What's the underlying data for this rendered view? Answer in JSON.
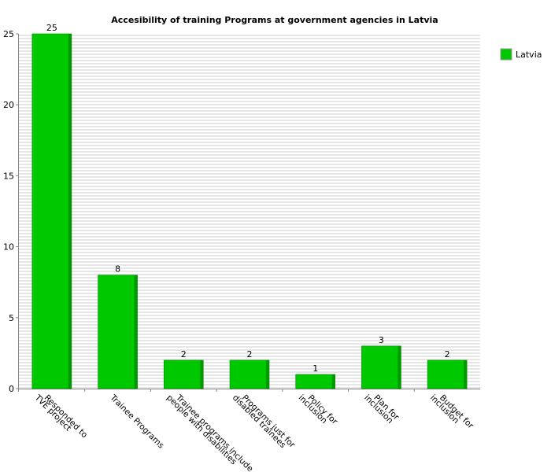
{
  "chart_data": {
    "type": "bar",
    "title": "Accesibility of training Programs at government agencies in Latvia",
    "xlabel": "",
    "ylabel": "",
    "ylim": [
      0,
      25
    ],
    "yticks": [
      0,
      5,
      10,
      15,
      20,
      25
    ],
    "categories": [
      [
        "Responded to",
        "TVE project"
      ],
      [
        "Trainee Programs"
      ],
      [
        "Trainee programs include",
        "people with disabilities"
      ],
      [
        "Programs just for",
        "disabled trainees"
      ],
      [
        "Policy for",
        "inclusion"
      ],
      [
        "Plan for",
        "inclusion"
      ],
      [
        "Budget for",
        "inclusion"
      ]
    ],
    "series": [
      {
        "name": "Latvia",
        "values": [
          25,
          8,
          2,
          2,
          1,
          3,
          2
        ],
        "color": "#00c800"
      }
    ],
    "legend_position": "top-right",
    "grid": true,
    "data_labels": true
  }
}
